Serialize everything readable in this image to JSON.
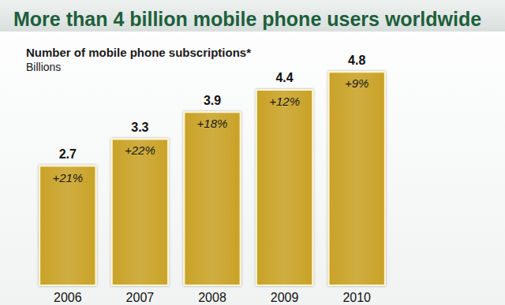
{
  "chart_data": {
    "type": "bar",
    "title": "More than 4 billion mobile phone users worldwide",
    "subtitle": "Number of mobile phone subscriptions*",
    "y_label": "Billions",
    "categories": [
      "2006",
      "2007",
      "2008",
      "2009",
      "2010"
    ],
    "values": [
      2.7,
      3.3,
      3.9,
      4.4,
      4.8
    ],
    "annotations": [
      "+21%",
      "+22%",
      "+18%",
      "+12%",
      "+9%"
    ],
    "color": "#c9a227",
    "data_labels": true,
    "tick_labels": "x"
  }
}
